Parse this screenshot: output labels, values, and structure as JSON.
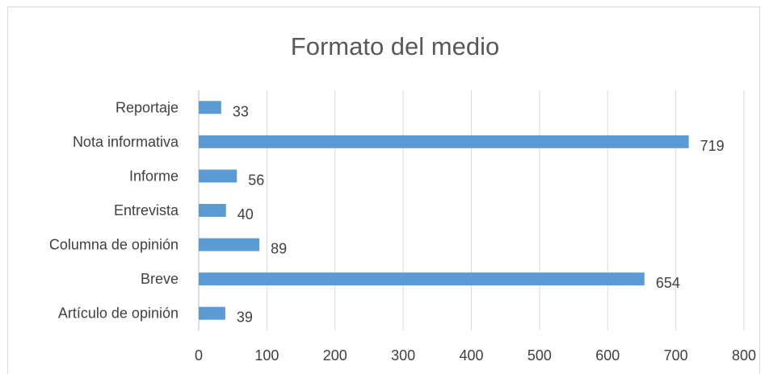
{
  "chart_data": {
    "type": "bar",
    "orientation": "horizontal",
    "title": "Formato del medio",
    "xlabel": "",
    "ylabel": "",
    "categories": [
      "Reportaje",
      "Nota informativa",
      "Informe",
      "Entrevista",
      "Columna de opinión",
      "Breve",
      "Artículo de opinión"
    ],
    "values": [
      33,
      719,
      56,
      40,
      89,
      654,
      39
    ],
    "xlim": [
      0,
      800
    ],
    "xticks": [
      0,
      100,
      200,
      300,
      400,
      500,
      600,
      700,
      800
    ],
    "grid": "vertical",
    "legend": "none",
    "colors": {
      "bar": "#5b9bd5",
      "grid": "#d9d9d9",
      "axis": "#bfbfbf",
      "text": "#404040",
      "title": "#595959"
    }
  }
}
